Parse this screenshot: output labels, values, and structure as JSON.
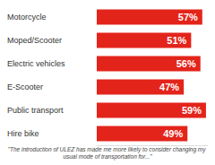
{
  "chart_data": {
    "type": "bar",
    "orientation": "horizontal",
    "subtitle": "\"The introduction of ULEZ has made me more likely to consider changing my usual mode of transportation for...\"",
    "categories": [
      "Motorcycle",
      "Moped/Scooter",
      "Electric vehicles",
      "E-Scooter",
      "Public transport",
      "Hire bike"
    ],
    "values": [
      57,
      51,
      56,
      47,
      59,
      49
    ],
    "value_labels": [
      "57%",
      "51%",
      "56%",
      "47%",
      "59%",
      "49%"
    ],
    "color": "#e3241b",
    "xlim": [
      0,
      60
    ],
    "grid": false,
    "data_labels": true,
    "tick_labels": "y"
  }
}
